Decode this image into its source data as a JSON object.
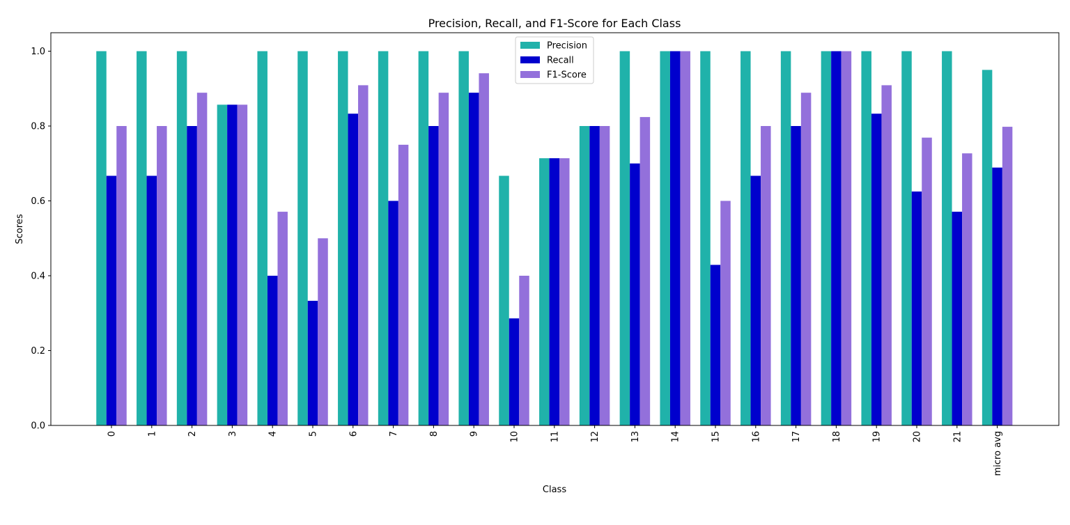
{
  "chart_data": {
    "type": "bar",
    "title": "Precision, Recall, and F1-Score for Each Class",
    "xlabel": "Class",
    "ylabel": "Scores",
    "ylim": [
      0,
      1.05
    ],
    "yticks": [
      "0.0",
      "0.2",
      "0.4",
      "0.6",
      "0.8",
      "1.0"
    ],
    "categories": [
      "0",
      "1",
      "2",
      "3",
      "4",
      "5",
      "6",
      "7",
      "8",
      "9",
      "10",
      "11",
      "12",
      "13",
      "14",
      "15",
      "16",
      "17",
      "18",
      "19",
      "20",
      "21",
      "micro avg"
    ],
    "series": [
      {
        "name": "Precision",
        "color": "#20b2aa",
        "values": [
          1.0,
          1.0,
          1.0,
          0.857,
          1.0,
          1.0,
          1.0,
          1.0,
          1.0,
          1.0,
          0.667,
          0.714,
          0.8,
          1.0,
          1.0,
          1.0,
          1.0,
          1.0,
          1.0,
          1.0,
          1.0,
          1.0,
          0.95
        ]
      },
      {
        "name": "Recall",
        "color": "#0000cd",
        "values": [
          0.667,
          0.667,
          0.8,
          0.857,
          0.4,
          0.333,
          0.833,
          0.6,
          0.8,
          0.889,
          0.286,
          0.714,
          0.8,
          0.7,
          1.0,
          0.429,
          0.667,
          0.8,
          1.0,
          0.833,
          0.625,
          0.571,
          0.689
        ]
      },
      {
        "name": "F1-Score",
        "color": "#9370db",
        "values": [
          0.8,
          0.8,
          0.889,
          0.857,
          0.571,
          0.5,
          0.909,
          0.75,
          0.889,
          0.941,
          0.4,
          0.714,
          0.8,
          0.824,
          1.0,
          0.6,
          0.8,
          0.889,
          1.0,
          0.909,
          0.769,
          0.727,
          0.798
        ]
      }
    ],
    "legend_position": "top-center",
    "grid": false
  }
}
